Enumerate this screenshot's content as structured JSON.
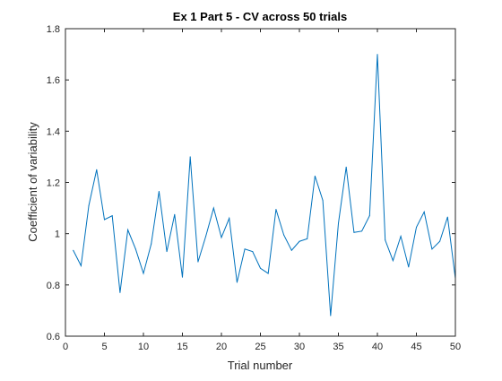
{
  "chart_data": {
    "type": "line",
    "title": "Ex 1 Part 5 - CV across 50 trials",
    "xlabel": "Trial number",
    "ylabel": "Coefficient of variability",
    "xlim": [
      0,
      50
    ],
    "ylim": [
      0.6,
      1.8
    ],
    "xticks": [
      0,
      5,
      10,
      15,
      20,
      25,
      30,
      35,
      40,
      45,
      50
    ],
    "yticks": [
      0.6,
      0.8,
      1,
      1.2,
      1.4,
      1.6,
      1.8
    ],
    "xtick_labels": [
      "0",
      "5",
      "10",
      "15",
      "20",
      "25",
      "30",
      "35",
      "40",
      "45",
      "50"
    ],
    "ytick_labels": [
      "0.6",
      "0.8",
      "1",
      "1.2",
      "1.4",
      "1.6",
      "1.8"
    ],
    "grid": false,
    "series_color": "#0072BD",
    "x": [
      1,
      2,
      3,
      4,
      5,
      6,
      7,
      8,
      9,
      10,
      11,
      12,
      13,
      14,
      15,
      16,
      17,
      18,
      19,
      20,
      21,
      22,
      23,
      24,
      25,
      26,
      27,
      28,
      29,
      30,
      31,
      32,
      33,
      34,
      35,
      36,
      37,
      38,
      39,
      40,
      41,
      42,
      43,
      44,
      45,
      46,
      47,
      48,
      49,
      50
    ],
    "values": [
      0.935,
      0.875,
      1.11,
      1.25,
      1.055,
      1.07,
      0.77,
      1.015,
      0.94,
      0.845,
      0.96,
      1.165,
      0.93,
      1.075,
      0.83,
      1.3,
      0.89,
      0.99,
      1.1,
      0.985,
      1.06,
      0.81,
      0.94,
      0.93,
      0.865,
      0.845,
      1.095,
      0.995,
      0.935,
      0.97,
      0.98,
      1.225,
      1.13,
      0.68,
      1.04,
      1.26,
      1.005,
      1.01,
      1.07,
      1.7,
      0.975,
      0.895,
      0.99,
      0.87,
      1.025,
      1.085,
      0.94,
      0.97,
      1.065,
      0.825
    ]
  }
}
